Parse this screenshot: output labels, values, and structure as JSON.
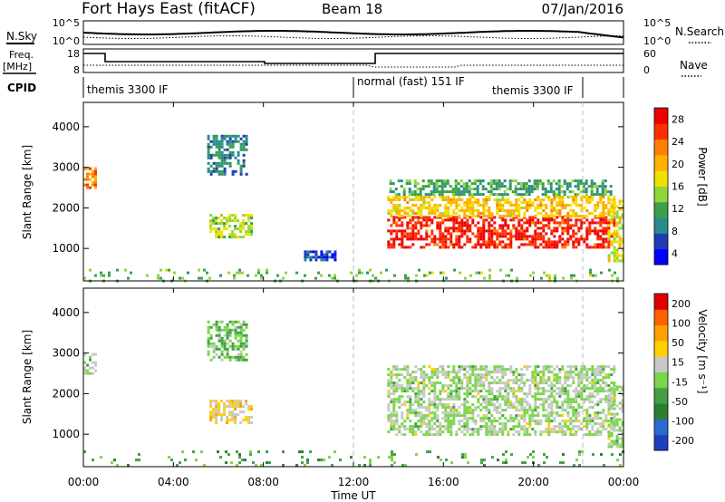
{
  "header": {
    "title": "Fort Hays East (fitACF)",
    "beam": "Beam 18",
    "date": "07/Jan/2016"
  },
  "labels": {
    "nsky": "N.Sky",
    "nsearch": "N.Search",
    "freq_top": "Freq.",
    "freq_unit": "[MHz]",
    "nave": "Nave",
    "cpid": "CPID"
  },
  "noise_panel": {
    "left_ticks": [
      "10^5",
      "10^0"
    ],
    "right_ticks": [
      "10^5",
      "10^0"
    ]
  },
  "freq_panel": {
    "left_ticks": [
      "18",
      "8"
    ],
    "right_ticks": [
      "60",
      "0"
    ]
  },
  "cpid_labels": [
    {
      "text": "themis 3300 IF",
      "start_hour": 0.05
    },
    {
      "text": "normal (fast) 151 IF",
      "start_hour": 12.0
    },
    {
      "text": "themis 3300 IF",
      "start_hour": 17.8
    }
  ],
  "cpid_dividers": [
    12.0,
    21.9
  ],
  "colors": {
    "power_scale": [
      "#0000ff",
      "#1e3cb4",
      "#2a8a8a",
      "#3aa04a",
      "#8fd63c",
      "#f0e000",
      "#ffb000",
      "#ff8000",
      "#ff3000",
      "#ee0000"
    ],
    "velocity_scale": [
      "#1f3fbf",
      "#2a6ad0",
      "#2e7d32",
      "#43a047",
      "#7bd64a",
      "#c8c8c8",
      "#ffd000",
      "#ffa000",
      "#ff6000",
      "#e00000"
    ]
  },
  "chart_data": [
    {
      "type": "heatmap",
      "quantity": "Power",
      "ylabel": "Slant Range [km]",
      "xlabel": "Time UT",
      "xlim": [
        0,
        24
      ],
      "ylim": [
        200,
        4600
      ],
      "x_ticks": [
        "00:00",
        "04:00",
        "08:00",
        "12:00",
        "16:00",
        "20:00",
        "00:00"
      ],
      "y_ticks": [
        1000,
        2000,
        3000,
        4000
      ],
      "colorbar_label": "Power [dB]",
      "colorbar_ticks": [
        "28",
        "24",
        "20",
        "16",
        "12",
        "8",
        "4"
      ],
      "colorbar_range": [
        0,
        30
      ],
      "regions": [
        {
          "t0": 13.5,
          "t1": 23.6,
          "r0": 1000,
          "r1": 1800,
          "level": 27
        },
        {
          "t0": 13.5,
          "t1": 23.6,
          "r0": 1800,
          "r1": 2300,
          "level": 18
        },
        {
          "t0": 13.6,
          "t1": 23.4,
          "r0": 2300,
          "r1": 2700,
          "level": 10
        },
        {
          "t0": 5.6,
          "t1": 7.5,
          "r0": 1250,
          "r1": 1850,
          "level": 14
        },
        {
          "t0": 5.5,
          "t1": 7.2,
          "r0": 2800,
          "r1": 3800,
          "level": 8
        },
        {
          "t0": 0.0,
          "t1": 24.0,
          "r0": 200,
          "r1": 500,
          "level": 12
        },
        {
          "t0": 23.3,
          "t1": 24.0,
          "r0": 700,
          "r1": 2200,
          "level": 16
        },
        {
          "t0": 0.0,
          "t1": 0.5,
          "r0": 2500,
          "r1": 3000,
          "level": 22
        },
        {
          "t0": 9.8,
          "t1": 11.2,
          "r0": 700,
          "r1": 950,
          "level": 5
        }
      ]
    },
    {
      "type": "heatmap",
      "quantity": "Velocity",
      "ylabel": "Slant Range [km]",
      "xlabel": "Time UT",
      "xlim": [
        0,
        24
      ],
      "ylim": [
        200,
        4600
      ],
      "x_ticks": [
        "00:00",
        "04:00",
        "08:00",
        "12:00",
        "16:00",
        "20:00",
        "00:00"
      ],
      "y_ticks": [
        1000,
        2000,
        3000,
        4000
      ],
      "colorbar_label": "Velocity [m s⁻¹]",
      "colorbar_ticks": [
        "200",
        "100",
        "50",
        "15",
        "-15",
        "-50",
        "-100",
        "-200"
      ],
      "colorbar_range": [
        -250,
        250
      ],
      "regions": [
        {
          "t0": 13.5,
          "t1": 23.6,
          "r0": 1000,
          "r1": 2700,
          "level": 0
        },
        {
          "t0": 5.6,
          "t1": 7.5,
          "r0": 1250,
          "r1": 1850,
          "level": 60
        },
        {
          "t0": 5.5,
          "t1": 7.2,
          "r0": 2800,
          "r1": 3800,
          "level": -40
        },
        {
          "t0": 0.0,
          "t1": 24.0,
          "r0": 200,
          "r1": 600,
          "level": -70
        },
        {
          "t0": 23.3,
          "t1": 24.0,
          "r0": 700,
          "r1": 2200,
          "level": 0
        },
        {
          "t0": 0.0,
          "t1": 0.5,
          "r0": 2500,
          "r1": 3000,
          "level": 0
        }
      ]
    }
  ]
}
